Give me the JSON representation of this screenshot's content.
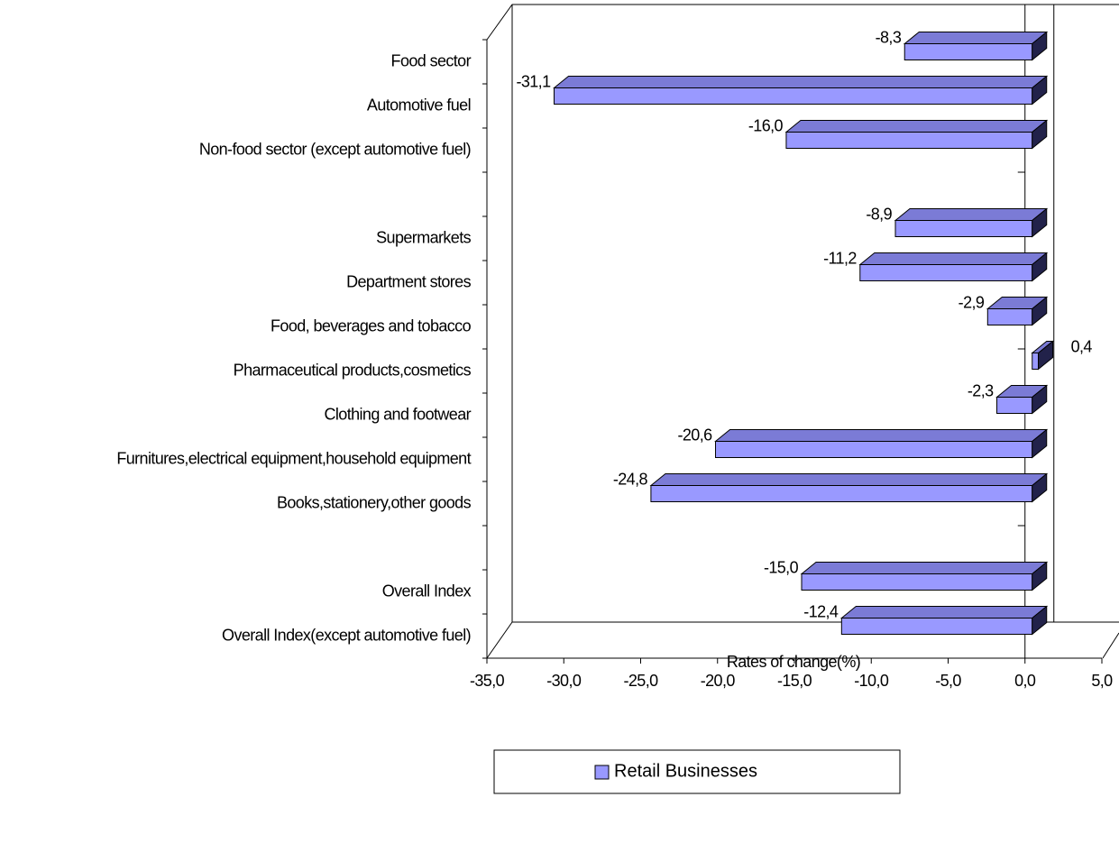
{
  "chart_data": {
    "type": "bar3d-horizontal",
    "categories": [
      "Food sector",
      "Automotive fuel",
      "Non-food sector (except automotive fuel)",
      null,
      "Supermarkets",
      "Department stores",
      "Food, beverages and tobacco",
      "Pharmaceutical products,cosmetics",
      "Clothing and footwear",
      "Furnitures,electrical equipment,household equipment",
      "Books,stationery,other goods",
      null,
      "Overall Index",
      "Overall Index(except automotive fuel)"
    ],
    "series": [
      {
        "name": "Retail Businesses",
        "color": "#9999ff",
        "values": [
          -8.3,
          -31.1,
          -16.0,
          null,
          -8.9,
          -11.2,
          -2.9,
          0.4,
          -2.3,
          -20.6,
          -24.8,
          null,
          -15.0,
          -12.4
        ],
        "value_labels": [
          "-8,3",
          "-31,1",
          "-16,0",
          null,
          "-8,9",
          "-11,2",
          "-2,9",
          "0,4",
          "-2,3",
          "-20,6",
          "-24,8",
          null,
          "-15,0",
          "-12,4"
        ]
      }
    ],
    "xlabel": "Rates of change(%)",
    "xlim": [
      -35,
      5
    ],
    "xticks": [
      {
        "value": -35,
        "label": "-35,0"
      },
      {
        "value": -30,
        "label": "-30,0"
      },
      {
        "value": -25,
        "label": "-25,0"
      },
      {
        "value": -20,
        "label": "-20,0"
      },
      {
        "value": -15,
        "label": "-15,0"
      },
      {
        "value": -10,
        "label": "-10,0"
      },
      {
        "value": -5,
        "label": "-5,0"
      },
      {
        "value": 0,
        "label": "0,0"
      },
      {
        "value": 5,
        "label": "5,0"
      }
    ],
    "legend": "bottom"
  }
}
